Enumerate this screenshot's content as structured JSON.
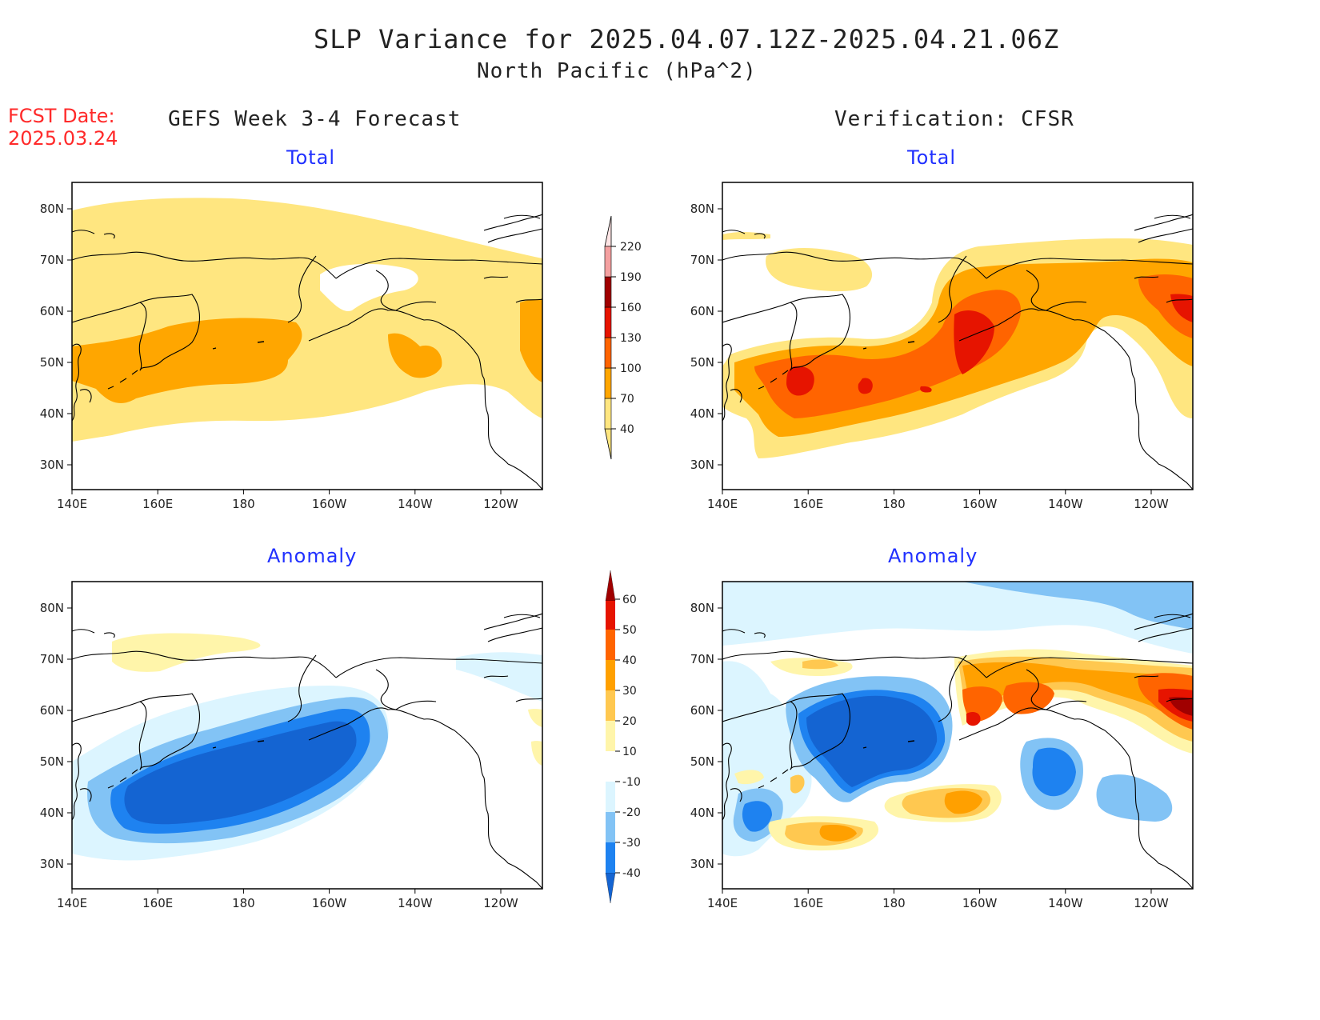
{
  "header": {
    "title": "SLP Variance for 2025.04.07.12Z-2025.04.21.06Z",
    "subtitle": "North Pacific (hPa^2)",
    "fcst_line1": "FCST Date:",
    "fcst_line2": "2025.03.24",
    "left_heading": "GEFS Week 3-4 Forecast",
    "right_heading": "Verification: CFSR"
  },
  "panels": {
    "tl_title": "Total",
    "tr_title": "Total",
    "bl_title": "Anomaly",
    "br_title": "Anomaly"
  },
  "axes": {
    "lon_ticks": [
      "140E",
      "160E",
      "180",
      "160W",
      "140W",
      "120W"
    ],
    "lat_ticks": [
      "80N",
      "70N",
      "60N",
      "50N",
      "40N",
      "30N"
    ]
  },
  "colorbars": {
    "total": {
      "levels": [
        "40",
        "70",
        "100",
        "130",
        "160",
        "190",
        "220"
      ],
      "colors": [
        "#ffe680",
        "#ffa600",
        "#ff6400",
        "#e61400",
        "#a00000",
        "#f4a0a0",
        "#fde4e4"
      ]
    },
    "anomaly": {
      "levels": [
        "-40",
        "-30",
        "-20",
        "-10",
        "10",
        "20",
        "30",
        "40",
        "50",
        "60"
      ],
      "colors": [
        "#1464d2",
        "#1e82f0",
        "#82c3f5",
        "#dcf5ff",
        "#ffffff",
        "#fff5aa",
        "#ffc850",
        "#ffa000",
        "#ff6400",
        "#e61400",
        "#a00000"
      ]
    }
  },
  "colors": {
    "title_text": "#222222",
    "fcst_text": "#ff2a2a",
    "panel_title": "#2030ff"
  }
}
